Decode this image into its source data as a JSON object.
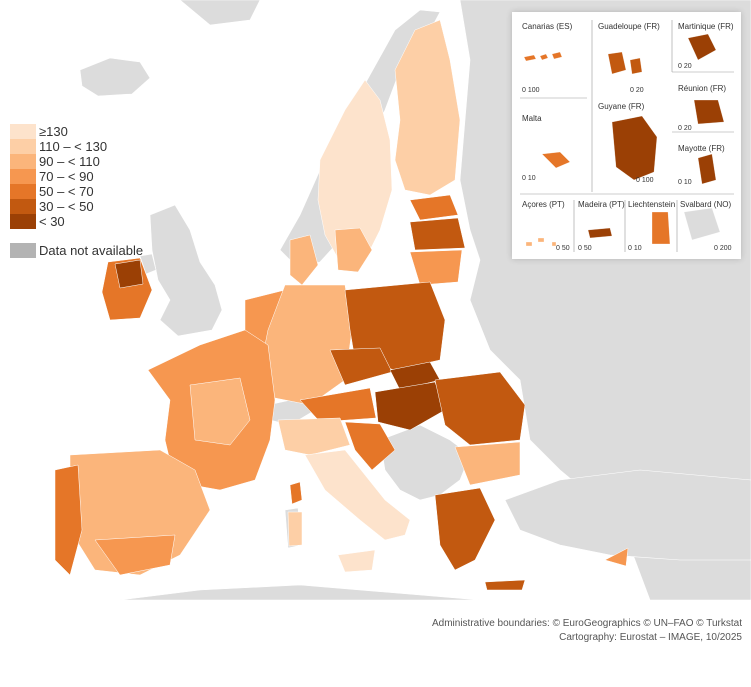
{
  "legend": {
    "classes": [
      {
        "label": "≥130",
        "color": "#fde3cc"
      },
      {
        "label": "110 – < 130",
        "color": "#fdcfa6"
      },
      {
        "label": "90 – < 110",
        "color": "#fbb57b"
      },
      {
        "label": "70 – < 90",
        "color": "#f69750"
      },
      {
        "label": "50 – < 70",
        "color": "#e57628"
      },
      {
        "label": "30 – < 50",
        "color": "#c25910"
      },
      {
        "label": "< 30",
        "color": "#9b4005"
      }
    ],
    "not_available": "Data not available",
    "not_available_color": "#b3b3b3"
  },
  "colors": {
    "sea": "#ffffff",
    "non_eu_land": "#dcdcdc",
    "border": "#3a3a3a"
  },
  "insets": [
    {
      "name": "Canarias (ES)",
      "scale": "0   100"
    },
    {
      "name": "Guadeloupe (FR)",
      "scale": "0 20"
    },
    {
      "name": "Martinique (FR)",
      "scale": "0 20"
    },
    {
      "name": "Réunion (FR)",
      "scale": "0 20"
    },
    {
      "name": "Malta",
      "scale": "0 10"
    },
    {
      "name": "Guyane (FR)",
      "scale": "0   100"
    },
    {
      "name": "Mayotte (FR)",
      "scale": "0 10"
    },
    {
      "name": "Açores (PT)",
      "scale": "0 50"
    },
    {
      "name": "Madeira (PT)",
      "scale": "0 50"
    },
    {
      "name": "Liechtenstein",
      "scale": "0 10"
    },
    {
      "name": "Svalbard (NO)",
      "scale": "0   200"
    }
  ],
  "footer": {
    "line1": "Administrative boundaries: © EuroGeographics © UN–FAO © Turkstat",
    "line2": "Cartography: Eurostat – IMAGE, 10/2025"
  }
}
